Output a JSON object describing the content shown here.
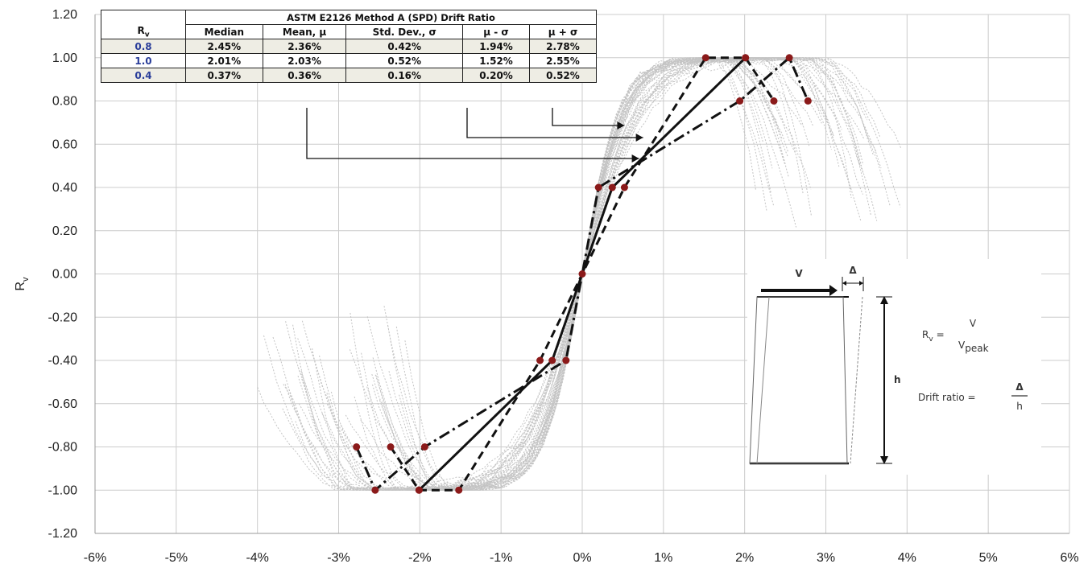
{
  "chart_data": {
    "type": "line",
    "title": "",
    "ylabel": "R",
    "ylabel_sub": "v",
    "xlabel": "",
    "xlim": [
      -6,
      6
    ],
    "ylim": [
      -1.2,
      1.2
    ],
    "x_ticks": [
      "-6%",
      "-5%",
      "-4%",
      "-3%",
      "-2%",
      "-1%",
      "0%",
      "1%",
      "2%",
      "3%",
      "4%",
      "5%",
      "6%"
    ],
    "y_ticks": [
      "-1.20",
      "-1.00",
      "-0.80",
      "-0.60",
      "-0.40",
      "-0.20",
      "0.00",
      "0.20",
      "0.40",
      "0.60",
      "0.80",
      "1.00",
      "1.20"
    ],
    "grid": true,
    "series": [
      {
        "style": "solid",
        "x": [
          -2.01,
          -0.37,
          0,
          0.37,
          2.01
        ],
        "y": [
          -1.0,
          -0.4,
          0,
          0.4,
          1.0
        ]
      },
      {
        "style": "dashed",
        "x": [
          -2.36,
          -2.01,
          -1.52,
          -0.52,
          0,
          0.52,
          1.52,
          2.01,
          2.36
        ],
        "y": [
          -0.8,
          -1.0,
          -1.0,
          -0.4,
          0,
          0.4,
          1.0,
          1.0,
          0.8
        ]
      },
      {
        "style": "dash-dot",
        "x": [
          -2.78,
          -2.55,
          -1.94,
          -0.2,
          0,
          0.2,
          1.94,
          2.55,
          2.78
        ],
        "y": [
          -0.8,
          -1.0,
          -0.8,
          -0.4,
          0,
          0.4,
          0.8,
          1.0,
          0.8
        ]
      }
    ],
    "annotations": {
      "arrows_from_table": [
        "Mean, μ",
        "μ - σ",
        "μ + σ"
      ],
      "marker_color": "#8b1a1a",
      "grey_test_curves": true
    },
    "table": {
      "title": "ASTM E2126 Method A (SPD) Drift Ratio",
      "rv_header": "R",
      "rv_header_sub": "v",
      "columns": [
        "Median",
        "Mean, μ",
        "Std. Dev., σ",
        "μ - σ",
        "μ + σ"
      ],
      "rows": [
        {
          "rv": "0.8",
          "values": [
            "2.45%",
            "2.36%",
            "0.42%",
            "1.94%",
            "2.78%"
          ]
        },
        {
          "rv": "1.0",
          "values": [
            "2.01%",
            "2.03%",
            "0.52%",
            "1.52%",
            "2.55%"
          ]
        },
        {
          "rv": "0.4",
          "values": [
            "0.37%",
            "0.36%",
            "0.16%",
            "0.20%",
            "0.52%"
          ]
        }
      ]
    },
    "inset": {
      "v_label": "V",
      "delta_label": "Δ",
      "h_label": "h",
      "formula_rv": "R",
      "formula_rv_sub": "v",
      "formula_eq": "=",
      "formula_num": "V",
      "formula_den": "V",
      "formula_den_sub": "peak",
      "drift_label": "Drift ratio =",
      "drift_num": "Δ",
      "drift_den": "h"
    }
  },
  "colors": {
    "grid": "#cccccc",
    "grey_curves": "#c4c4c4",
    "main_lines": "#111111",
    "markers": "#8b1a1a",
    "table_shade": "#eeede4",
    "rv_values": "#2a3e9a"
  }
}
